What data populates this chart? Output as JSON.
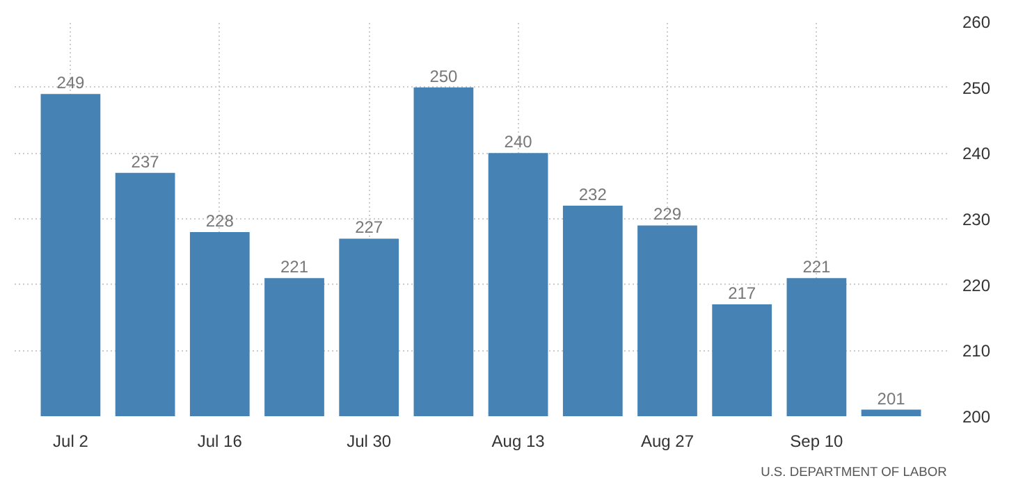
{
  "chart_data": {
    "type": "bar",
    "categories": [
      "Jul 2",
      null,
      "Jul 16",
      null,
      "Jul 30",
      null,
      "Aug 13",
      null,
      "Aug 27",
      null,
      "Sep 10",
      null
    ],
    "values": [
      249,
      237,
      228,
      221,
      227,
      250,
      240,
      232,
      229,
      217,
      221,
      201
    ],
    "color": "#4682b4",
    "ylim": [
      200,
      260
    ],
    "yticks": [
      200,
      210,
      220,
      230,
      240,
      250,
      260
    ],
    "grid": true,
    "data_labels": true,
    "annotations": [
      "U.S. DEPARTMENT OF LABOR"
    ]
  }
}
